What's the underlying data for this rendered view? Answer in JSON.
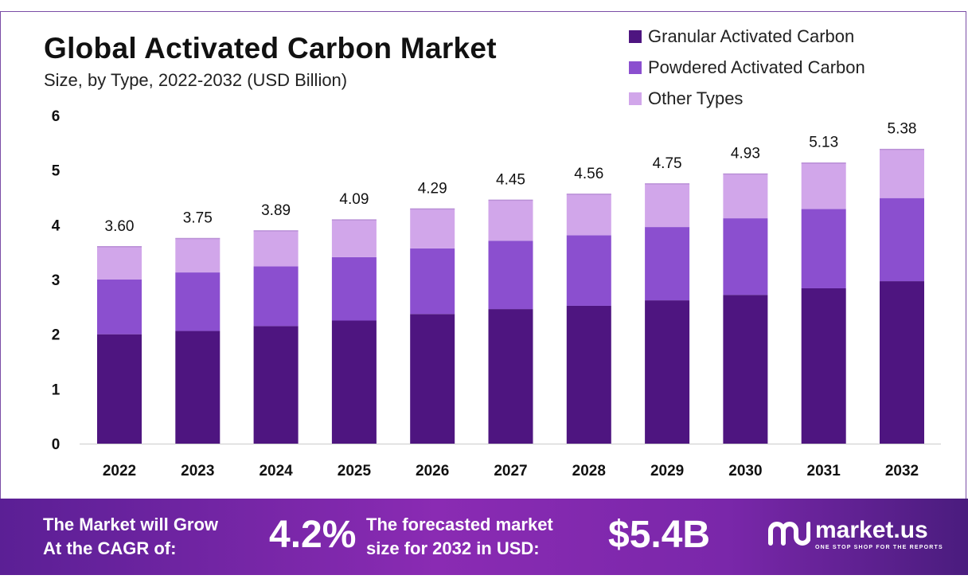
{
  "header": {
    "title": "Global Activated Carbon Market",
    "subtitle": "Size, by Type, 2022-2032 (USD Billion)"
  },
  "colors": {
    "granular": "#4e1580",
    "powdered": "#8b4fcf",
    "other": "#d1a6ea",
    "footer_start": "#5b1f95",
    "footer_end": "#4a1c7e"
  },
  "chart_data": {
    "type": "bar",
    "stacked": true,
    "title": "Global Activated Carbon Market",
    "subtitle": "Size, by Type, 2022-2032 (USD Billion)",
    "xlabel": "",
    "ylabel": "",
    "ylim": [
      0,
      6
    ],
    "yticks": [
      "0",
      "1",
      "2",
      "3",
      "4",
      "5",
      "6"
    ],
    "grid": false,
    "legend_position": "top-right",
    "categories": [
      "2022",
      "2023",
      "2024",
      "2025",
      "2026",
      "2027",
      "2028",
      "2029",
      "2030",
      "2031",
      "2032"
    ],
    "series": [
      {
        "name": "Granular Activated Carbon",
        "color": "#4e1580",
        "values": [
          2.0,
          2.06,
          2.15,
          2.25,
          2.37,
          2.46,
          2.52,
          2.62,
          2.72,
          2.84,
          2.97
        ]
      },
      {
        "name": "Powdered Activated Carbon",
        "color": "#8b4fcf",
        "values": [
          1.0,
          1.07,
          1.09,
          1.16,
          1.2,
          1.25,
          1.29,
          1.34,
          1.4,
          1.45,
          1.52
        ]
      },
      {
        "name": "Other Types",
        "color": "#d1a6ea",
        "values": [
          0.6,
          0.62,
          0.65,
          0.68,
          0.72,
          0.74,
          0.75,
          0.79,
          0.81,
          0.84,
          0.89
        ]
      }
    ],
    "totals": [
      3.6,
      3.75,
      3.89,
      4.09,
      4.29,
      4.45,
      4.56,
      4.75,
      4.93,
      5.13,
      5.38
    ],
    "total_labels": [
      "3.60",
      "3.75",
      "3.89",
      "4.09",
      "4.29",
      "4.45",
      "4.56",
      "4.75",
      "4.93",
      "5.13",
      "5.38"
    ]
  },
  "footer": {
    "cagr_label_line1": "The Market will Grow",
    "cagr_label_line2": "At the CAGR of:",
    "cagr_value": "4.2%",
    "forecast_label_line1": "The forecasted market",
    "forecast_label_line2": "size for 2032 in USD:",
    "forecast_value": "$5.4B",
    "brand_name": "market.us",
    "brand_tagline": "ONE STOP SHOP FOR THE REPORTS",
    "brand_icon": "market-us-logo-icon"
  }
}
